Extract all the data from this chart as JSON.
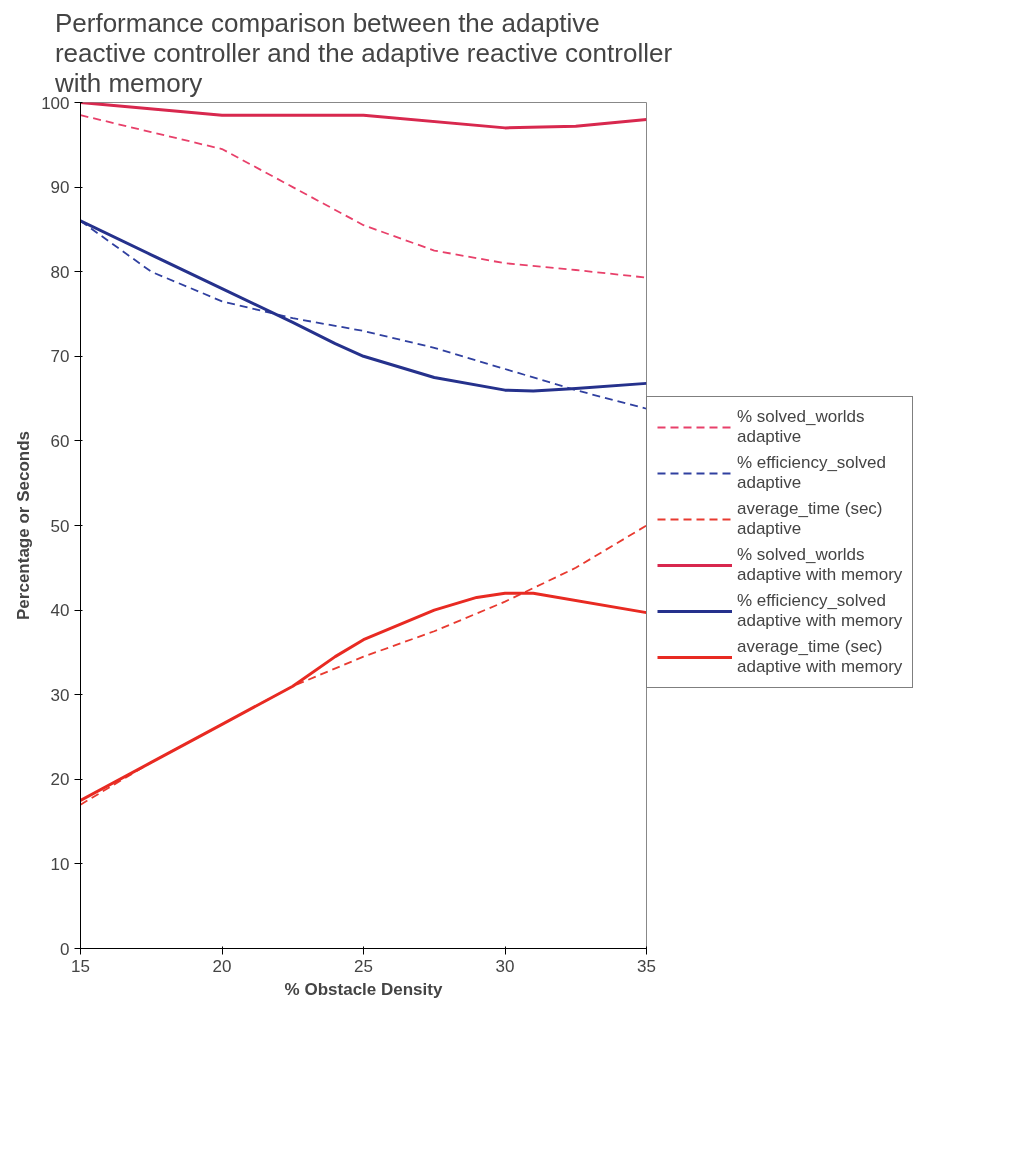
{
  "chart_data": {
    "type": "line",
    "title": "Performance comparison between the adaptive\nreactive controller and the adaptive reactive controller\nwith memory",
    "xlabel": "% Obstacle Density",
    "ylabel": "Percentage or Seconds",
    "xlim": [
      15,
      35
    ],
    "xticks": [
      15,
      20,
      25,
      30,
      35
    ],
    "ylim": [
      0,
      100
    ],
    "yticks": [
      0,
      10,
      20,
      30,
      40,
      50,
      60,
      70,
      80,
      90,
      100
    ],
    "grid": false,
    "legend": "right",
    "marker": "none",
    "series": [
      {
        "name": "% solved_worlds\nadaptive",
        "color": "#e8406a",
        "line_style": "dashed",
        "x": [
          15,
          17.5,
          20,
          22.5,
          25,
          27.5,
          30,
          32.5,
          35
        ],
        "values": [
          98.5,
          96.5,
          94.5,
          90,
          85.5,
          82.5,
          81,
          80.2,
          79.3
        ]
      },
      {
        "name": "% efficiency_solved\nadaptive",
        "color": "#3040a0",
        "line_style": "dashed",
        "x": [
          15,
          17.5,
          20,
          22.5,
          25,
          27.5,
          30,
          32.5,
          35
        ],
        "values": [
          86,
          80,
          76.5,
          74.5,
          73,
          71,
          68.5,
          66,
          63.8
        ]
      },
      {
        "name": "average_time (sec)\nadaptive",
        "color": "#e83a30",
        "line_style": "dashed",
        "x": [
          15,
          17.5,
          20,
          22.5,
          25,
          27.5,
          30,
          32.5,
          35
        ],
        "values": [
          17,
          22,
          26.5,
          31,
          34.5,
          37.5,
          41,
          45,
          50
        ]
      },
      {
        "name": "% solved_worlds\nadaptive with memory",
        "color": "#d8284e",
        "line_style": "solid",
        "x": [
          15,
          20,
          25,
          30,
          32.5,
          35
        ],
        "values": [
          100,
          98.5,
          98.5,
          97,
          97.2,
          98
        ]
      },
      {
        "name": "% efficiency_solved\nadaptive with memory",
        "color": "#25318c",
        "line_style": "solid",
        "x": [
          15,
          17.5,
          20,
          22.5,
          24,
          25,
          27.5,
          30,
          31,
          32.5,
          35
        ],
        "values": [
          86,
          82,
          78,
          74,
          71.5,
          70,
          67.5,
          66,
          65.9,
          66.2,
          66.8
        ]
      },
      {
        "name": "average_time (sec)\nadaptive with memory",
        "color": "#e82a22",
        "line_style": "solid",
        "x": [
          15,
          17.5,
          20,
          22.5,
          24,
          25,
          27.5,
          29,
          30,
          31,
          35
        ],
        "values": [
          17.5,
          22,
          26.5,
          31,
          34.5,
          36.5,
          40,
          41.5,
          42,
          42,
          39.7
        ]
      }
    ]
  }
}
